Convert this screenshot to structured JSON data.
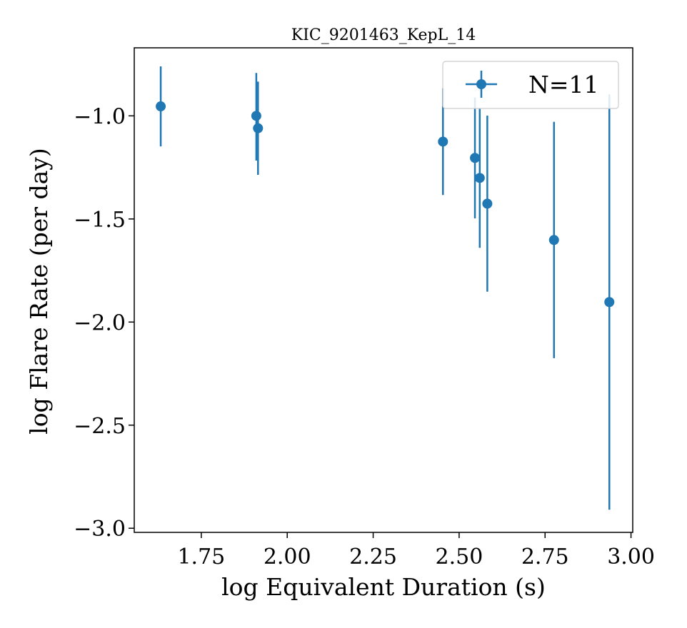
{
  "chart_data": {
    "type": "scatter",
    "title": "KIC_9201463_KepL_14",
    "xlabel": "log Equivalent Duration (s)",
    "ylabel": "log Flare Rate (per day)",
    "xlim": [
      1.555,
      3.005
    ],
    "ylim": [
      -3.02,
      -0.67
    ],
    "xticks": [
      1.75,
      2.0,
      2.25,
      2.5,
      2.75,
      3.0
    ],
    "xtick_labels": [
      "1.75",
      "2.00",
      "2.25",
      "2.50",
      "2.75",
      "3.00"
    ],
    "yticks": [
      -1.0,
      -1.5,
      -2.0,
      -2.5,
      -3.0
    ],
    "ytick_labels": [
      "−1.0",
      "−1.5",
      "−2.0",
      "−2.5",
      "−3.0"
    ],
    "grid": false,
    "legend_position": "top-right",
    "color": "#1f77b4",
    "series": [
      {
        "name": "N=11",
        "points": [
          {
            "x": 1.632,
            "y": -0.954,
            "ylo": -1.148,
            "yhi": -0.76
          },
          {
            "x": 1.91,
            "y": -1.0,
            "ylo": -1.217,
            "yhi": -0.792
          },
          {
            "x": 1.915,
            "y": -1.06,
            "ylo": -1.286,
            "yhi": -0.834
          },
          {
            "x": 2.453,
            "y": -1.125,
            "ylo": -1.384,
            "yhi": -0.866
          },
          {
            "x": 2.546,
            "y": -1.204,
            "ylo": -1.497,
            "yhi": -0.911
          },
          {
            "x": 2.56,
            "y": -1.301,
            "ylo": -1.64,
            "yhi": -0.962
          },
          {
            "x": 2.582,
            "y": -1.426,
            "ylo": -1.853,
            "yhi": -0.999
          },
          {
            "x": 2.776,
            "y": -1.602,
            "ylo": -2.175,
            "yhi": -1.029
          },
          {
            "x": 2.937,
            "y": -1.903,
            "ylo": -2.91,
            "yhi": -0.896
          }
        ]
      }
    ]
  }
}
